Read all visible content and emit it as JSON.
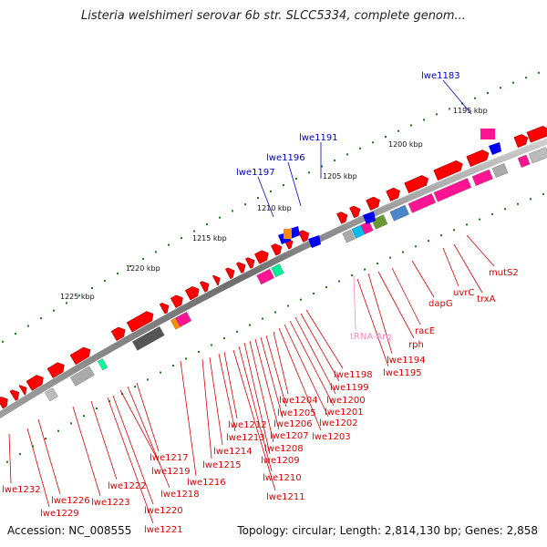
{
  "title": "Listeria welshimeri serovar 6b str. SLCC5334, complete genom...",
  "footer": {
    "accession": "Accession: NC_008555",
    "summary": "Topology: circular; Length: 2,814,130 bp; Genes: 2,858"
  },
  "colors": {
    "backbone": "#8c8c8c",
    "gene_red": "#ff0000",
    "gene_magenta": "#ff1493",
    "gene_blue": "#0000ee",
    "label_red": "#dd0000",
    "label_blue": "#0000cc",
    "label_pink": "#ff88bb",
    "tick_green": "#1a7a1a"
  },
  "scale_labels": [
    "1195 kbp",
    "1200 kbp",
    "1205 kbp",
    "1210 kbp",
    "1215 kbp",
    "1220 kbp",
    "1225 kbp"
  ],
  "labels_top": [
    "lwe1183",
    "lwe1191",
    "lwe1196",
    "lwe1197"
  ],
  "labels_right": [
    "mutS2",
    "trxA",
    "uvrC",
    "dapG",
    "racE",
    "rph",
    "tRNA-Arg",
    "lwe1194",
    "lwe1195"
  ],
  "labels_bottom": [
    "lwe1198",
    "lwe1199",
    "lwe1200",
    "lwe1201",
    "lwe1202",
    "lwe1203",
    "lwe1204",
    "lwe1205",
    "lwe1206",
    "lwe1207",
    "lwe1208",
    "lwe1209",
    "lwe1210",
    "lwe1211",
    "lwe1212",
    "lwe1213",
    "lwe1214",
    "lwe1215",
    "lwe1216",
    "lwe1217",
    "lwe1218",
    "lwe1219",
    "lwe1220",
    "lwe1221",
    "lwe1222",
    "lwe1223",
    "lwe1226",
    "lwe1229",
    "lwe1232"
  ]
}
